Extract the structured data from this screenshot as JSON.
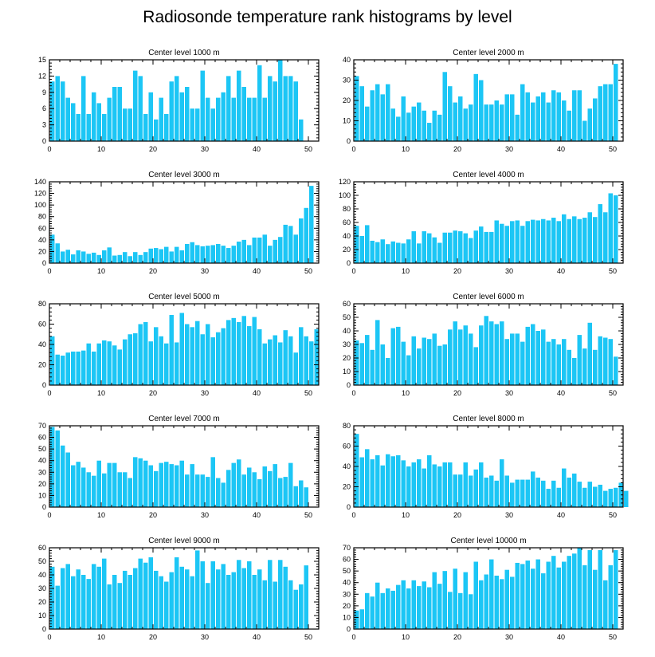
{
  "title": "Radiosonde temperature rank histograms by level",
  "colors": {
    "bar": "#1cc6f5",
    "axis": "#000000",
    "background": "#ffffff"
  },
  "chart_data": [
    {
      "type": "bar",
      "title": "Center level 1000 m",
      "xlabel": "",
      "ylabel": "",
      "xlim": [
        0,
        52
      ],
      "ylim": [
        0,
        15
      ],
      "xticks": [
        0,
        10,
        20,
        30,
        40,
        50
      ],
      "yticks": [
        0,
        3,
        6,
        9,
        12,
        15
      ],
      "values": [
        11,
        12,
        11,
        8,
        7,
        5,
        12,
        5,
        9,
        7,
        5,
        8,
        10,
        10,
        6,
        6,
        13,
        12,
        5,
        9,
        4,
        8,
        5,
        11,
        12,
        9,
        10,
        6,
        6,
        13,
        8,
        6,
        8,
        9,
        12,
        8,
        13,
        10,
        8,
        8,
        14,
        8,
        12,
        11,
        15,
        12,
        12,
        11,
        4
      ]
    },
    {
      "type": "bar",
      "title": "Center level 2000 m",
      "xlabel": "",
      "ylabel": "",
      "xlim": [
        0,
        52
      ],
      "ylim": [
        0,
        40
      ],
      "xticks": [
        0,
        10,
        20,
        30,
        40,
        50
      ],
      "yticks": [
        0,
        10,
        20,
        30,
        40
      ],
      "values": [
        32,
        27,
        17,
        25,
        28,
        23,
        28,
        16,
        12,
        22,
        14,
        17,
        19,
        15,
        9,
        15,
        13,
        34,
        27,
        19,
        22,
        16,
        18,
        33,
        30,
        18,
        18,
        20,
        18,
        23,
        23,
        13,
        28,
        24,
        19,
        22,
        24,
        19,
        25,
        24,
        20,
        15,
        25,
        25,
        10,
        16,
        21,
        27,
        28,
        28,
        38
      ]
    },
    {
      "type": "bar",
      "title": "Center level 3000 m",
      "xlabel": "",
      "ylabel": "",
      "xlim": [
        0,
        52
      ],
      "ylim": [
        0,
        140
      ],
      "xticks": [
        0,
        10,
        20,
        30,
        40,
        50
      ],
      "yticks": [
        0,
        20,
        40,
        60,
        80,
        100,
        120,
        140
      ],
      "values": [
        49,
        34,
        20,
        23,
        15,
        22,
        20,
        16,
        18,
        14,
        22,
        27,
        13,
        14,
        19,
        12,
        19,
        14,
        19,
        25,
        26,
        24,
        28,
        20,
        28,
        22,
        33,
        36,
        31,
        29,
        30,
        31,
        33,
        30,
        26,
        30,
        37,
        40,
        31,
        44,
        44,
        49,
        30,
        40,
        45,
        66,
        64,
        49,
        77,
        95,
        133
      ]
    },
    {
      "type": "bar",
      "title": "Center level 4000 m",
      "xlabel": "",
      "ylabel": "",
      "xlim": [
        0,
        52
      ],
      "ylim": [
        0,
        120
      ],
      "xticks": [
        0,
        10,
        20,
        30,
        40,
        50
      ],
      "yticks": [
        0,
        20,
        40,
        60,
        80,
        100,
        120
      ],
      "values": [
        55,
        40,
        56,
        33,
        31,
        35,
        28,
        32,
        30,
        29,
        35,
        47,
        29,
        47,
        44,
        38,
        30,
        45,
        45,
        48,
        47,
        44,
        37,
        48,
        54,
        46,
        46,
        63,
        58,
        55,
        62,
        63,
        55,
        62,
        64,
        63,
        65,
        63,
        67,
        62,
        72,
        65,
        69,
        65,
        67,
        75,
        68,
        87,
        75,
        103,
        100
      ]
    },
    {
      "type": "bar",
      "title": "Center level 5000 m",
      "xlabel": "",
      "ylabel": "",
      "xlim": [
        0,
        52
      ],
      "ylim": [
        0,
        80
      ],
      "xticks": [
        0,
        10,
        20,
        30,
        40,
        50
      ],
      "yticks": [
        0,
        20,
        40,
        60,
        80
      ],
      "values": [
        48,
        30,
        29,
        32,
        33,
        33,
        34,
        41,
        33,
        41,
        44,
        43,
        39,
        35,
        45,
        50,
        51,
        60,
        62,
        43,
        57,
        48,
        41,
        69,
        42,
        71,
        60,
        57,
        63,
        50,
        60,
        47,
        52,
        56,
        64,
        66,
        62,
        68,
        58,
        67,
        55,
        41,
        45,
        49,
        42,
        54,
        48,
        32,
        57,
        48,
        43,
        55
      ]
    },
    {
      "type": "bar",
      "title": "Center level 6000 m",
      "xlabel": "",
      "ylabel": "",
      "xlim": [
        0,
        52
      ],
      "ylim": [
        0,
        60
      ],
      "xticks": [
        0,
        10,
        20,
        30,
        40,
        50
      ],
      "yticks": [
        0,
        10,
        20,
        30,
        40,
        50,
        60
      ],
      "values": [
        33,
        31,
        37,
        26,
        48,
        30,
        20,
        42,
        43,
        32,
        22,
        36,
        27,
        35,
        34,
        38,
        29,
        30,
        41,
        47,
        41,
        44,
        38,
        28,
        44,
        51,
        47,
        45,
        47,
        34,
        38,
        38,
        32,
        43,
        45,
        40,
        41,
        32,
        34,
        30,
        34,
        26,
        20,
        37,
        27,
        46,
        26,
        36,
        35,
        34,
        21
      ]
    },
    {
      "type": "bar",
      "title": "Center level 7000 m",
      "xlabel": "",
      "ylabel": "",
      "xlim": [
        0,
        52
      ],
      "ylim": [
        0,
        70
      ],
      "xticks": [
        0,
        10,
        20,
        30,
        40,
        50
      ],
      "yticks": [
        0,
        10,
        20,
        30,
        40,
        50,
        60,
        70
      ],
      "values": [
        69,
        66,
        53,
        47,
        36,
        39,
        34,
        30,
        27,
        40,
        29,
        38,
        38,
        30,
        30,
        25,
        43,
        42,
        40,
        36,
        31,
        38,
        39,
        37,
        36,
        40,
        28,
        37,
        28,
        28,
        26,
        43,
        25,
        21,
        32,
        38,
        41,
        28,
        34,
        30,
        24,
        35,
        31,
        37,
        25,
        26,
        38,
        18,
        23,
        17
      ]
    },
    {
      "type": "bar",
      "title": "Center level 8000 m",
      "xlabel": "",
      "ylabel": "",
      "xlim": [
        0,
        52
      ],
      "ylim": [
        0,
        80
      ],
      "xticks": [
        0,
        10,
        20,
        30,
        40,
        50
      ],
      "yticks": [
        0,
        20,
        40,
        60,
        80
      ],
      "values": [
        72,
        49,
        57,
        47,
        51,
        41,
        52,
        50,
        51,
        46,
        40,
        44,
        47,
        38,
        51,
        42,
        40,
        44,
        44,
        32,
        32,
        44,
        31,
        37,
        44,
        29,
        31,
        26,
        47,
        31,
        24,
        27,
        27,
        27,
        35,
        29,
        26,
        18,
        26,
        19,
        38,
        29,
        33,
        25,
        19,
        25,
        20,
        22,
        16,
        18,
        19,
        24,
        16
      ]
    },
    {
      "type": "bar",
      "title": "Center level 9000 m",
      "xlabel": "",
      "ylabel": "",
      "xlim": [
        0,
        52
      ],
      "ylim": [
        0,
        60
      ],
      "xticks": [
        0,
        10,
        20,
        30,
        40,
        50
      ],
      "yticks": [
        0,
        10,
        20,
        30,
        40,
        50,
        60
      ],
      "values": [
        46,
        32,
        45,
        48,
        39,
        44,
        40,
        37,
        48,
        46,
        52,
        33,
        40,
        34,
        43,
        40,
        45,
        52,
        49,
        53,
        43,
        39,
        35,
        42,
        53,
        46,
        44,
        39,
        58,
        50,
        34,
        50,
        44,
        48,
        40,
        42,
        51,
        45,
        50,
        40,
        44,
        36,
        51,
        35,
        51,
        46,
        36,
        29,
        33,
        47
      ]
    },
    {
      "type": "bar",
      "title": "Center level 10000 m",
      "xlabel": "",
      "ylabel": "",
      "xlim": [
        0,
        52
      ],
      "ylim": [
        0,
        70
      ],
      "xticks": [
        0,
        10,
        20,
        30,
        40,
        50
      ],
      "yticks": [
        0,
        10,
        20,
        30,
        40,
        50,
        60,
        70
      ],
      "values": [
        16,
        17,
        31,
        28,
        40,
        31,
        35,
        33,
        38,
        42,
        35,
        42,
        37,
        41,
        36,
        49,
        39,
        50,
        32,
        52,
        31,
        49,
        30,
        58,
        42,
        47,
        60,
        46,
        43,
        51,
        45,
        57,
        56,
        59,
        52,
        60,
        48,
        58,
        63,
        53,
        58,
        63,
        65,
        70,
        55,
        68,
        51,
        68,
        42,
        55,
        68
      ]
    }
  ]
}
